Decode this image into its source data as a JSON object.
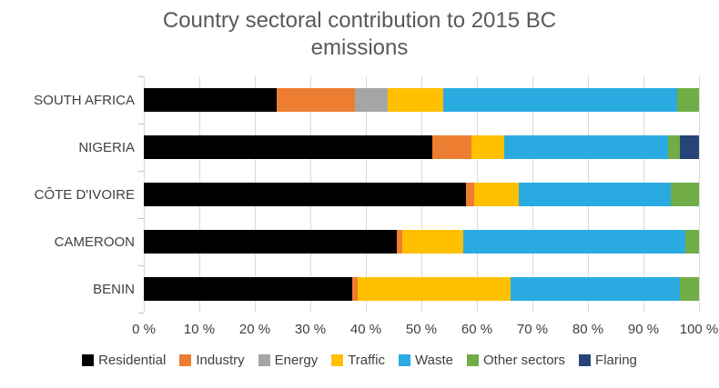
{
  "chart_data": {
    "type": "bar",
    "orientation": "horizontal",
    "stacked": true,
    "title": "Country sectoral contribution to 2015 BC emissions",
    "categories": [
      "SOUTH AFRICA",
      "NIGERIA",
      "CÔTE D'IVOIRE",
      "CAMEROON",
      "BENIN"
    ],
    "series": [
      {
        "name": "Residential",
        "color": "#000000",
        "values": [
          24,
          52,
          58,
          45.5,
          37.5
        ]
      },
      {
        "name": "Industry",
        "color": "#ED7D31",
        "values": [
          14,
          7,
          1.5,
          1,
          1
        ]
      },
      {
        "name": "Energy",
        "color": "#A5A5A5",
        "values": [
          6,
          0,
          0,
          0,
          0
        ]
      },
      {
        "name": "Traffic",
        "color": "#FFC000",
        "values": [
          10,
          6,
          8,
          11,
          27.5
        ]
      },
      {
        "name": "Waste",
        "color": "#29ABE2",
        "values": [
          42,
          29.5,
          27.5,
          40,
          30.5
        ]
      },
      {
        "name": "Other sectors",
        "color": "#70AD47",
        "values": [
          4,
          2,
          5,
          2.5,
          3.5
        ]
      },
      {
        "name": "Flaring",
        "color": "#264478",
        "values": [
          0,
          3.5,
          0,
          0,
          0
        ]
      }
    ],
    "x_ticks": [
      "0 %",
      "10 %",
      "20 %",
      "30 %",
      "40 %",
      "50 %",
      "60 %",
      "70 %",
      "80 %",
      "90 %",
      "100 %"
    ],
    "xlim": [
      0,
      100
    ],
    "grid": true,
    "legend_position": "bottom",
    "colors": {
      "title_text": "#595959",
      "axis_text": "#404040",
      "gridline": "#D9D9D9"
    }
  }
}
